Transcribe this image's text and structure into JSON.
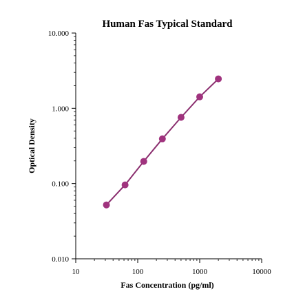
{
  "chart_data": {
    "type": "line",
    "title": "Human  Fas Typical  Standard",
    "xlabel": "Fas Concentration  (pg/ml)",
    "ylabel": "Optical  Density",
    "x_scale": "log",
    "y_scale": "log",
    "xlim": [
      10,
      10000
    ],
    "ylim": [
      0.01,
      10
    ],
    "x_ticks": [
      "10",
      "100",
      "1000",
      "10000"
    ],
    "y_ticks": [
      "0.010",
      "0.100",
      "1.000",
      "10.000"
    ],
    "grid": false,
    "legend": "none",
    "series": [
      {
        "x": [
          31.25,
          62.5,
          125,
          250,
          500,
          1000,
          2000
        ],
        "y": [
          0.052,
          0.096,
          0.197,
          0.393,
          0.758,
          1.42,
          2.46
        ]
      }
    ],
    "colors": {
      "line": "#8b2f6f",
      "marker": "#a0337e",
      "axis": "#000000"
    }
  }
}
